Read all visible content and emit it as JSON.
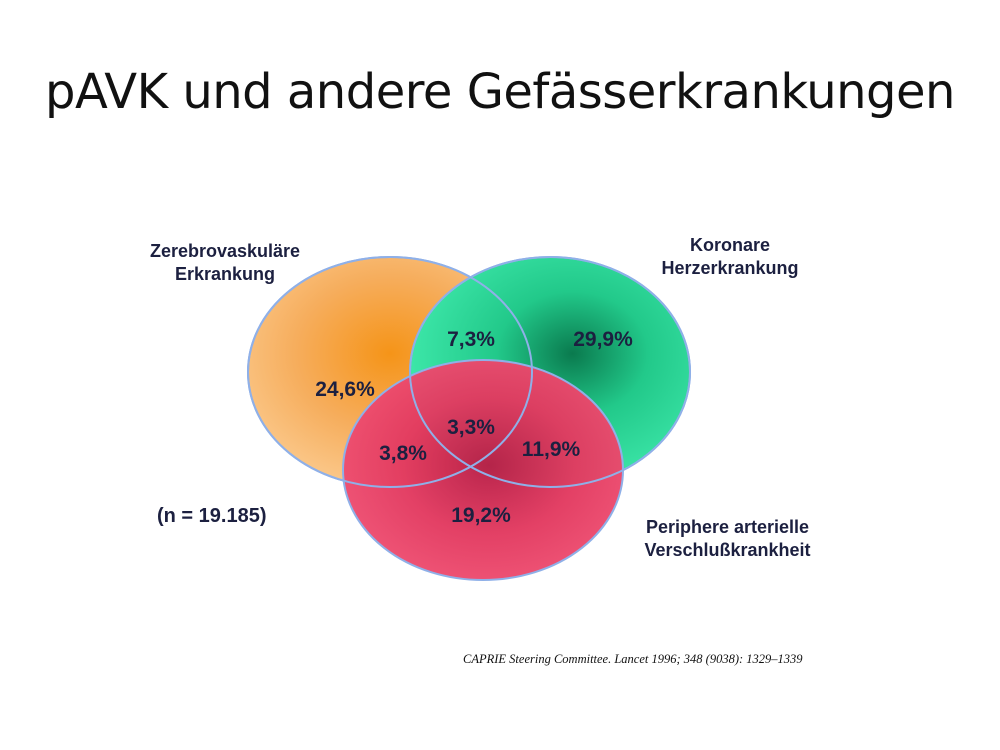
{
  "slide": {
    "title": "pAVK und andere Gefässerkrankungen"
  },
  "venn": {
    "sets": [
      {
        "key": "cerebro",
        "label_line1": "Zerebrovaskuläre",
        "label_line2": "Erkrankung",
        "color": "#f5a545"
      },
      {
        "key": "coronary",
        "label_line1": "Koronare",
        "label_line2": "Herzerkrankung",
        "color": "#2ee0a0"
      },
      {
        "key": "pad",
        "label_line1": "Periphere arterielle",
        "label_line2": "Verschlußkrankheit",
        "color": "#f0456a"
      }
    ],
    "regions": {
      "cerebro_only": "24,6%",
      "coronary_only": "29,9%",
      "pad_only": "19,2%",
      "cerebro_coronary": "7,3%",
      "cerebro_pad": "3,8%",
      "coronary_pad": "11,9%",
      "all_three": "3,3%"
    },
    "outline_color": "#8fb0e8"
  },
  "sample_size": "(n = 19.185)",
  "citation": "CAPRIE Steering Committee. Lancet 1996; 348 (9038): 1329–1339"
}
